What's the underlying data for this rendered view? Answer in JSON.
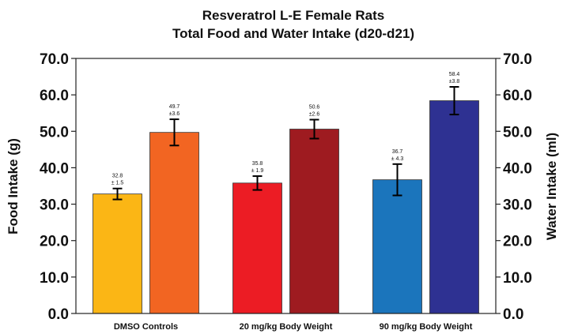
{
  "chart_data": {
    "type": "bar",
    "title": "Resveratrol L-E Female Rats",
    "subtitle": "Total Food and Water Intake (d20-d21)",
    "ylabel": "Food Intake (g)",
    "ylabel_right": "Water Intake (ml)",
    "xlabel": "",
    "ylim": [
      0,
      70
    ],
    "yticks": [
      "0.0",
      "10.0",
      "20.0",
      "30.0",
      "40.0",
      "50.0",
      "60.0",
      "70.0"
    ],
    "grid": false,
    "legend": "none",
    "categories": [
      "DMSO Controls",
      "20 mg/kg Body Weight",
      "90 mg/kg Body Weight"
    ],
    "series": [
      {
        "values": [
          32.8,
          35.8,
          36.7
        ],
        "errors": [
          1.5,
          1.9,
          4.3
        ],
        "value_labels": [
          "32.8",
          "35.8",
          "36.7"
        ],
        "error_labels": [
          "± 1.5",
          "± 1.9",
          "± 4.3"
        ],
        "colors": [
          "#fbb615",
          "#ec1c24",
          "#1b75bc"
        ]
      },
      {
        "values": [
          49.7,
          50.6,
          58.4
        ],
        "errors": [
          3.6,
          2.6,
          3.8
        ],
        "value_labels": [
          "49.7",
          "50.6",
          "58.4"
        ],
        "error_labels": [
          "±3.6",
          "±2.6",
          "±3.8"
        ],
        "colors": [
          "#f26522",
          "#9e1b20",
          "#2e3192"
        ]
      }
    ]
  }
}
